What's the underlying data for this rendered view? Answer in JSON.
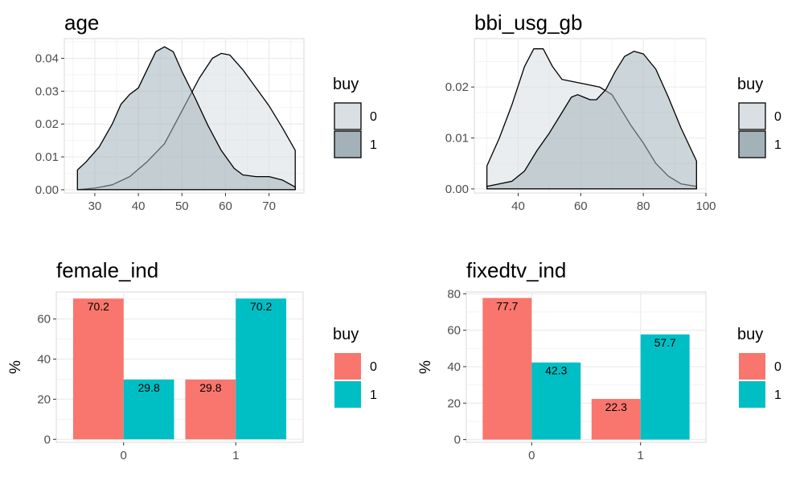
{
  "chart_data": [
    {
      "type": "area",
      "subtype": "density",
      "title": "age",
      "xlabel": "",
      "ylabel": "",
      "xlim": [
        23,
        78
      ],
      "ylim": [
        -0.001,
        0.046
      ],
      "xticks": [
        30,
        40,
        50,
        60,
        70
      ],
      "yticks": [
        0.0,
        0.01,
        0.02,
        0.03,
        0.04
      ],
      "ytick_labels": [
        "0.00",
        "0.01",
        "0.02",
        "0.03",
        "0.04"
      ],
      "grid": true,
      "legend": {
        "title": "buy",
        "position": "right"
      },
      "series": [
        {
          "name": "0",
          "color": "#d9dfe2",
          "x": [
            26,
            30,
            34,
            38,
            42,
            46,
            50,
            54,
            57,
            59,
            61,
            64,
            67,
            70,
            73,
            76
          ],
          "values": [
            0.0,
            0.0005,
            0.0015,
            0.004,
            0.0085,
            0.014,
            0.024,
            0.034,
            0.04,
            0.0415,
            0.041,
            0.0365,
            0.031,
            0.0255,
            0.019,
            0.012
          ]
        },
        {
          "name": "1",
          "color": "#a3b2b9",
          "x": [
            26,
            28,
            31,
            34,
            36,
            38,
            40,
            42,
            44,
            46,
            48,
            50,
            53,
            56,
            59,
            62,
            64,
            67,
            70,
            73,
            76
          ],
          "values": [
            0.006,
            0.0085,
            0.013,
            0.02,
            0.026,
            0.029,
            0.031,
            0.0365,
            0.042,
            0.0435,
            0.042,
            0.036,
            0.028,
            0.0195,
            0.012,
            0.0065,
            0.0045,
            0.004,
            0.004,
            0.003,
            0.0008
          ]
        }
      ]
    },
    {
      "type": "area",
      "subtype": "density",
      "title": "bbi_usg_gb",
      "xlabel": "",
      "ylabel": "",
      "xlim": [
        26,
        100
      ],
      "ylim": [
        -0.0008,
        0.0295
      ],
      "xticks": [
        40,
        60,
        80,
        100
      ],
      "yticks": [
        0.0,
        0.01,
        0.02
      ],
      "ytick_labels": [
        "0.00",
        "0.01",
        "0.02"
      ],
      "grid": true,
      "legend": {
        "title": "buy",
        "position": "right"
      },
      "series": [
        {
          "name": "0",
          "color": "#d9dfe2",
          "x": [
            30,
            34,
            38,
            42,
            45,
            48,
            51,
            54,
            58,
            62,
            66,
            70,
            73,
            76,
            80,
            84,
            88,
            92,
            97
          ],
          "values": [
            0.0045,
            0.01,
            0.0165,
            0.024,
            0.0275,
            0.0275,
            0.024,
            0.0215,
            0.021,
            0.0205,
            0.02,
            0.0185,
            0.0155,
            0.0125,
            0.009,
            0.005,
            0.0025,
            0.001,
            0.0005
          ]
        },
        {
          "name": "1",
          "color": "#a3b2b9",
          "x": [
            30,
            34,
            38,
            42,
            46,
            50,
            54,
            57,
            59,
            61,
            63,
            65,
            68,
            71,
            74,
            77,
            80,
            84,
            88,
            92,
            97
          ],
          "values": [
            0.0005,
            0.001,
            0.0015,
            0.0035,
            0.0075,
            0.011,
            0.015,
            0.018,
            0.0185,
            0.018,
            0.0175,
            0.0175,
            0.0195,
            0.023,
            0.026,
            0.027,
            0.0265,
            0.0235,
            0.018,
            0.012,
            0.0055
          ]
        }
      ]
    },
    {
      "type": "bar",
      "title": "female_ind",
      "xlabel": "",
      "ylabel": "%",
      "categories": [
        "0",
        "1"
      ],
      "ylim": [
        -1.5,
        73.5
      ],
      "yticks": [
        0,
        20,
        40,
        60
      ],
      "grid": true,
      "legend": {
        "title": "buy",
        "position": "right"
      },
      "series": [
        {
          "name": "0",
          "color": "#f8766d",
          "values": [
            70.2,
            29.8
          ],
          "labels": [
            "70.2",
            "29.8"
          ]
        },
        {
          "name": "1",
          "color": "#00bfc4",
          "values": [
            29.8,
            70.2
          ],
          "labels": [
            "29.8",
            "70.2"
          ]
        }
      ]
    },
    {
      "type": "bar",
      "title": "fixedtv_ind",
      "xlabel": "",
      "ylabel": "%",
      "categories": [
        "0",
        "1"
      ],
      "ylim": [
        -1.5,
        81
      ],
      "yticks": [
        0,
        20,
        40,
        60,
        80
      ],
      "grid": true,
      "legend": {
        "title": "buy",
        "position": "right"
      },
      "series": [
        {
          "name": "0",
          "color": "#f8766d",
          "values": [
            77.7,
            22.3
          ],
          "labels": [
            "77.7",
            "22.3"
          ]
        },
        {
          "name": "1",
          "color": "#00bfc4",
          "values": [
            42.3,
            57.7
          ],
          "labels": [
            "42.3",
            "57.7"
          ]
        }
      ]
    }
  ]
}
